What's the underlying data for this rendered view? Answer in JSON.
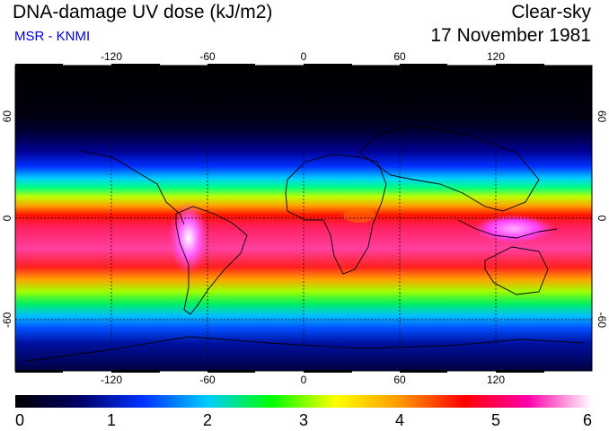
{
  "header": {
    "title": "DNA-damage UV dose (kJ/m2)",
    "subtitle": "MSR - KNMI",
    "condition": "Clear-sky",
    "date": "17 November 1981"
  },
  "map": {
    "projection": "equirectangular",
    "lon_range": [
      -180,
      180
    ],
    "lat_range": [
      -90,
      90
    ],
    "lon_ticks": [
      -120,
      -60,
      0,
      60,
      120
    ],
    "lon_tick_labels": [
      "-120",
      "-60",
      "0",
      "60",
      "120"
    ],
    "lat_ticks": [
      60,
      0,
      -60
    ],
    "lat_tick_labels": [
      "60",
      "0",
      "-60"
    ],
    "grid": "dashed"
  },
  "colorbar": {
    "min": 0,
    "max": 6,
    "labels": [
      "0",
      "1",
      "2",
      "3",
      "4",
      "5",
      "6"
    ],
    "colors": [
      "#000000",
      "#000066",
      "#0033ff",
      "#00ccff",
      "#00ff00",
      "#ffff00",
      "#ff9900",
      "#ff0000",
      "#ff00aa",
      "#ffffff"
    ]
  }
}
